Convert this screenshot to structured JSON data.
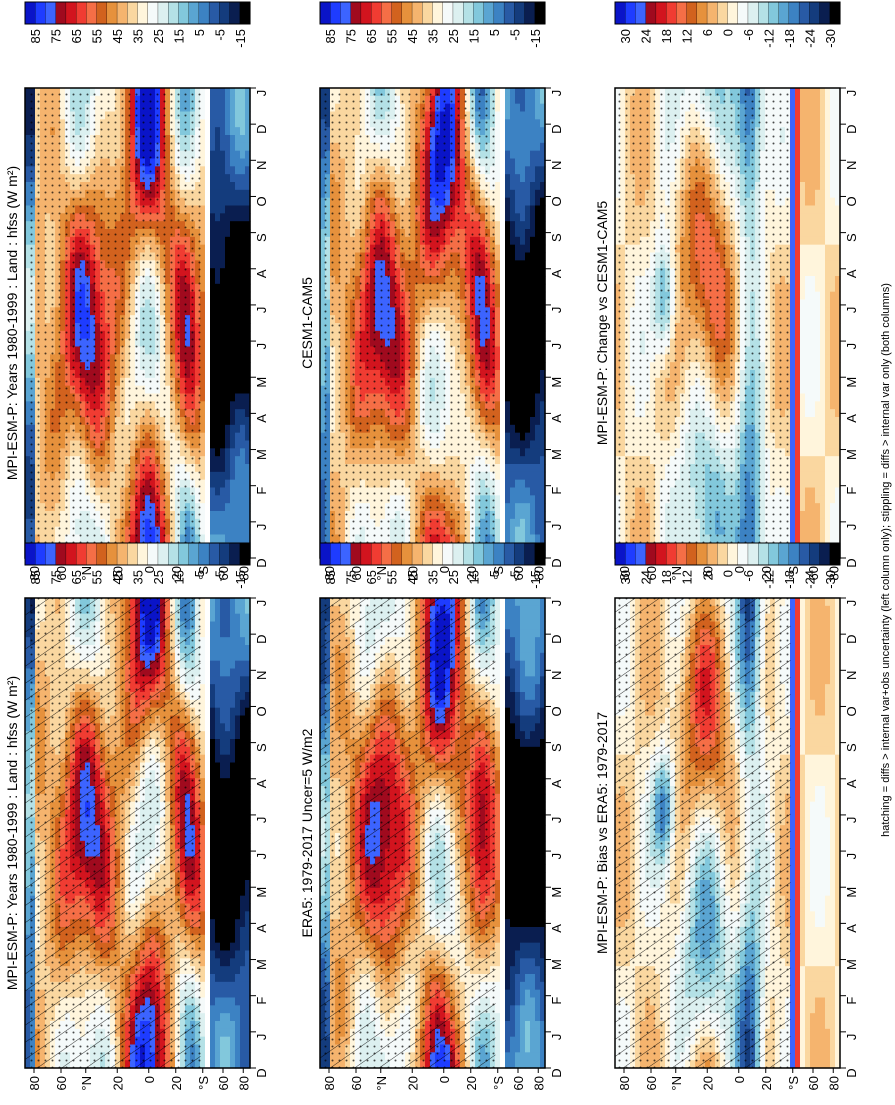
{
  "figure": {
    "footnote": "hatching = diffs > internal var+obs uncertainty (left column only); stippling = diffs > internal var only (both columns)"
  },
  "colorbars": {
    "absolute": {
      "ticks": [
        "85",
        "75",
        "65",
        "55",
        "45",
        "35",
        "25",
        "15",
        "5",
        "-5",
        "-15"
      ],
      "colors": [
        "#0a14c8",
        "#1e3cff",
        "#3c64ff",
        "#a00a1e",
        "#d2141e",
        "#f03c32",
        "#f56e46",
        "#d2621e",
        "#e6913c",
        "#f5b46e",
        "#fad7a0",
        "#fff5dc",
        "#f5fafa",
        "#dcf0f0",
        "#b4e1e6",
        "#82c8dc",
        "#5aa5d2",
        "#3c82c3",
        "#285aa5",
        "#143c7d",
        "#0a1e50",
        "#000000"
      ]
    },
    "difference": {
      "ticks": [
        "30",
        "24",
        "18",
        "12",
        "6",
        "0",
        "-6",
        "-12",
        "-18",
        "-24",
        "-30"
      ],
      "colors": [
        "#0a14c8",
        "#1e3cff",
        "#3c64ff",
        "#a00a1e",
        "#d2141e",
        "#f03c32",
        "#f56e46",
        "#d2621e",
        "#e6913c",
        "#f5b46e",
        "#fad7a0",
        "#fff5dc",
        "#f5fafa",
        "#dcf0f0",
        "#b4e1e6",
        "#82c8dc",
        "#5aa5d2",
        "#3c82c3",
        "#285aa5",
        "#143c7d",
        "#0a1e50",
        "#000000"
      ]
    }
  },
  "chart_data": [
    {
      "type": "heatmap",
      "title": "MPI-ESM-P: Years 1980-1999 : Land : hfss (W m²)",
      "month_ticks": [
        "D",
        "J",
        "F",
        "M",
        "A",
        "M",
        "J",
        "J",
        "A",
        "S",
        "O",
        "N",
        "D",
        "J"
      ],
      "lat_ticks": [
        "80",
        "60",
        "°N",
        "20",
        "0",
        "20",
        "°S",
        "60",
        "80"
      ],
      "colorbar": "absolute",
      "hatching": true,
      "stippling": true
    },
    {
      "type": "heatmap",
      "title": "MPI-ESM-P: Years 1980-1999 : Land : hfss (W m²)",
      "month_ticks": [
        "D",
        "J",
        "F",
        "M",
        "A",
        "M",
        "J",
        "J",
        "A",
        "S",
        "O",
        "N",
        "D",
        "J"
      ],
      "lat_ticks": [
        "80",
        "60",
        "°N",
        "20",
        "0",
        "20",
        "°S",
        "60",
        "80"
      ],
      "colorbar": "absolute",
      "hatching": false,
      "stippling": true
    },
    {
      "type": "heatmap",
      "title": "ERA5: 1979-2017 Uncer=5 W/m2",
      "month_ticks": [
        "D",
        "J",
        "F",
        "M",
        "A",
        "M",
        "J",
        "J",
        "A",
        "S",
        "O",
        "N",
        "D",
        "J"
      ],
      "lat_ticks": [
        "80",
        "60",
        "°N",
        "20",
        "0",
        "20",
        "°S",
        "60",
        "80"
      ],
      "colorbar": "absolute",
      "hatching": true,
      "stippling": true
    },
    {
      "type": "heatmap",
      "title": "CESM1-CAM5",
      "month_ticks": [
        "D",
        "J",
        "F",
        "M",
        "A",
        "M",
        "J",
        "J",
        "A",
        "S",
        "O",
        "N",
        "D",
        "J"
      ],
      "lat_ticks": [
        "80",
        "60",
        "°N",
        "20",
        "0",
        "20",
        "°S",
        "60",
        "80"
      ],
      "colorbar": "absolute",
      "hatching": false,
      "stippling": true
    },
    {
      "type": "heatmap",
      "title": "MPI-ESM-P: Bias vs ERA5: 1979-2017",
      "month_ticks": [
        "D",
        "J",
        "F",
        "M",
        "A",
        "M",
        "J",
        "J",
        "A",
        "S",
        "O",
        "N",
        "D",
        "J"
      ],
      "lat_ticks": [
        "80",
        "60",
        "°N",
        "20",
        "0",
        "20",
        "°S",
        "60",
        "80"
      ],
      "colorbar": "difference",
      "hatching": true,
      "stippling": true
    },
    {
      "type": "heatmap",
      "title": "MPI-ESM-P: Change vs CESM1-CAM5",
      "month_ticks": [
        "D",
        "J",
        "F",
        "M",
        "A",
        "M",
        "J",
        "J",
        "A",
        "S",
        "O",
        "N",
        "D",
        "J"
      ],
      "lat_ticks": [
        "80",
        "60",
        "°N",
        "20",
        "0",
        "20",
        "°S",
        "60",
        "80"
      ],
      "colorbar": "difference",
      "hatching": false,
      "stippling": true
    }
  ]
}
